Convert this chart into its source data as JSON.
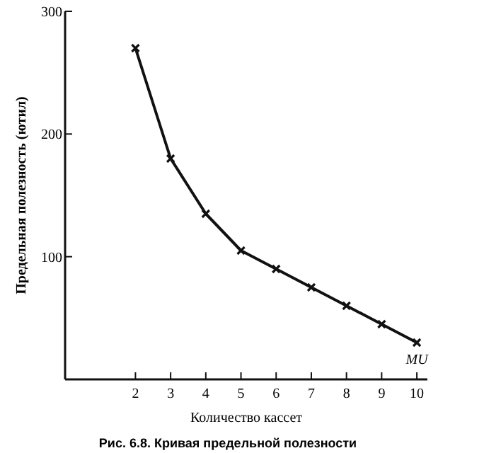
{
  "chart_data": {
    "type": "line",
    "title": "Рис. 6.8. Кривая предельной полезности",
    "xlabel": "Количество кассет",
    "ylabel": "Предельная полезность (ютил)",
    "x": [
      2,
      3,
      4,
      5,
      6,
      7,
      8,
      9,
      10
    ],
    "series": [
      {
        "color": "#111111",
        "values": [
          270,
          180,
          135,
          105,
          90,
          75,
          60,
          45,
          30
        ]
      }
    ],
    "xlim": [
      0,
      10.3
    ],
    "xticks": [
      2,
      3,
      4,
      5,
      6,
      7,
      8,
      9,
      10
    ],
    "ylim": [
      0,
      300
    ],
    "yticks": [
      100,
      200,
      300
    ],
    "annotations": [
      {
        "text": "MU",
        "x": 10,
        "y": 30
      }
    ],
    "marker": "cross",
    "line_style": "solid",
    "grid": false
  }
}
